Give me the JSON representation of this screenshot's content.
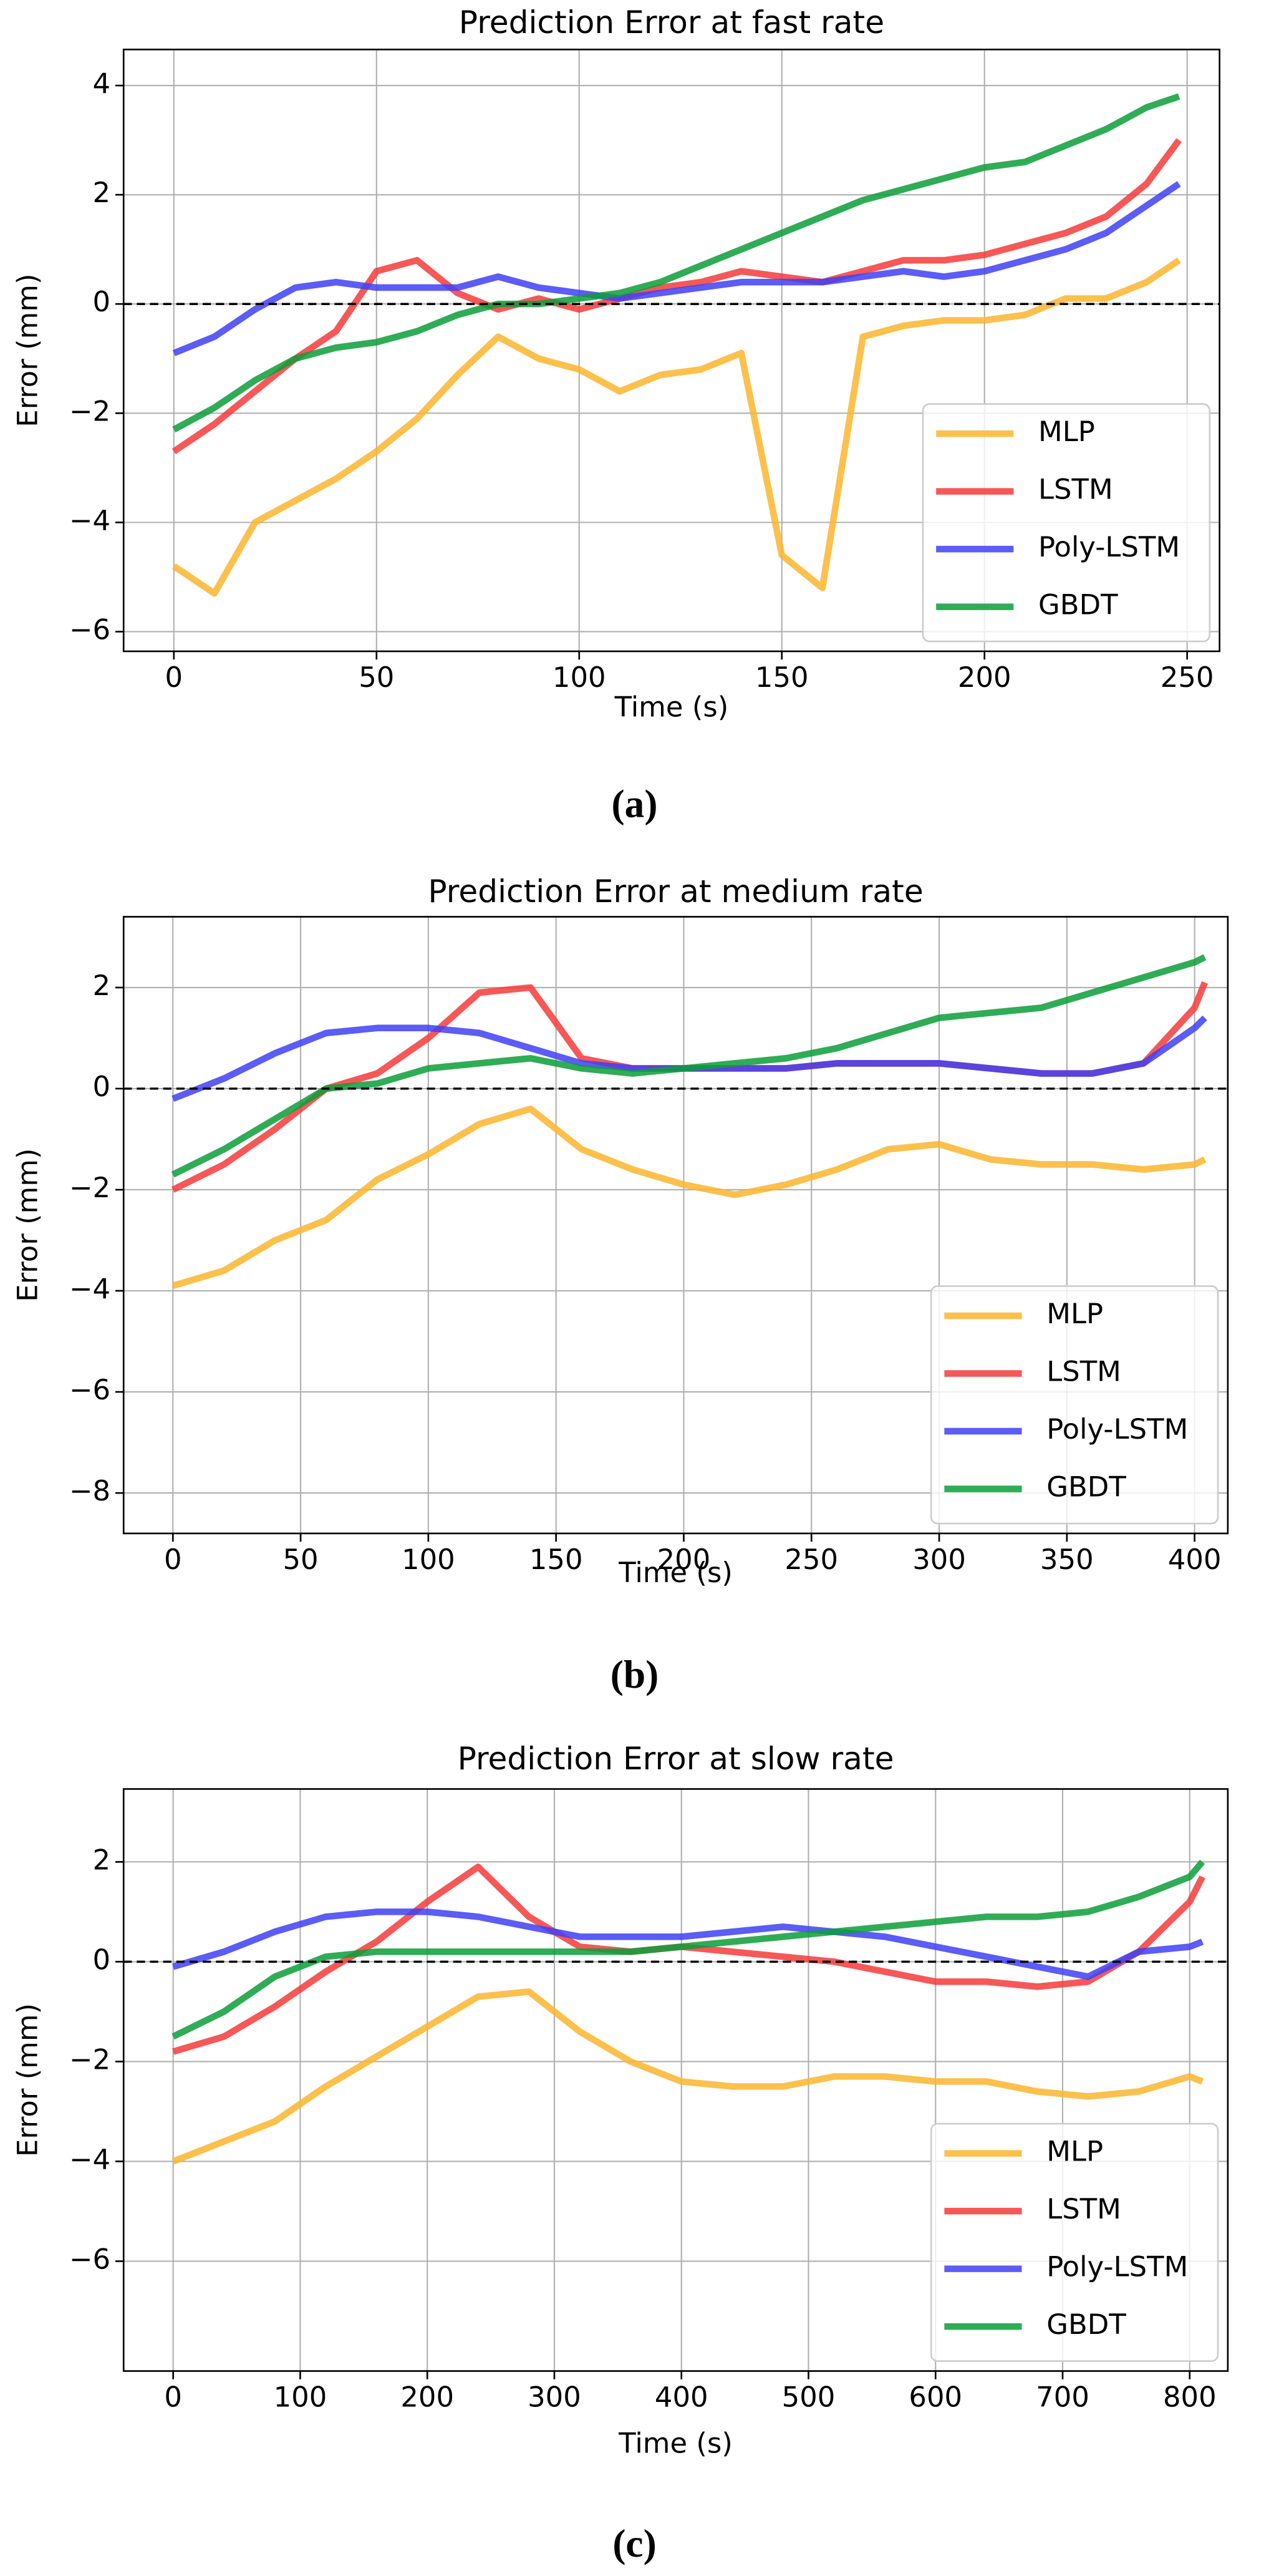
{
  "chart_data": [
    {
      "type": "line",
      "title": "Prediction Error at fast rate",
      "xlabel": "Time (s)",
      "ylabel": "Error (mm)",
      "caption": "(a)",
      "x": [
        0,
        10,
        20,
        30,
        40,
        50,
        60,
        70,
        80,
        90,
        100,
        110,
        120,
        130,
        140,
        150,
        160,
        170,
        180,
        190,
        200,
        210,
        220,
        230,
        240,
        248
      ],
      "series": [
        {
          "name": "MLP",
          "color": "#fbb52e",
          "values": [
            -4.8,
            -5.3,
            -4.0,
            -3.6,
            -3.2,
            -2.7,
            -2.1,
            -1.3,
            -0.6,
            -1.0,
            -1.2,
            -1.6,
            -1.3,
            -1.2,
            -0.9,
            -4.6,
            -5.2,
            -0.6,
            -0.4,
            -0.3,
            -0.3,
            -0.2,
            0.1,
            0.1,
            0.4,
            0.8
          ]
        },
        {
          "name": "LSTM",
          "color": "#f53b3b",
          "values": [
            -2.7,
            -2.2,
            -1.6,
            -1.0,
            -0.5,
            0.6,
            0.8,
            0.2,
            -0.1,
            0.1,
            -0.1,
            0.1,
            0.3,
            0.4,
            0.6,
            0.5,
            0.4,
            0.6,
            0.8,
            0.8,
            0.9,
            1.1,
            1.3,
            1.6,
            2.2,
            3.0
          ]
        },
        {
          "name": "Poly-LSTM",
          "color": "#3f3ff5",
          "values": [
            -0.9,
            -0.6,
            -0.1,
            0.3,
            0.4,
            0.3,
            0.3,
            0.3,
            0.5,
            0.3,
            0.2,
            0.1,
            0.2,
            0.3,
            0.4,
            0.4,
            0.4,
            0.5,
            0.6,
            0.5,
            0.6,
            0.8,
            1.0,
            1.3,
            1.8,
            2.2
          ]
        },
        {
          "name": "GBDT",
          "color": "#0c9e3a",
          "values": [
            -2.3,
            -1.9,
            -1.4,
            -1.0,
            -0.8,
            -0.7,
            -0.5,
            -0.2,
            0.0,
            0.0,
            0.1,
            0.2,
            0.4,
            0.7,
            1.0,
            1.3,
            1.6,
            1.9,
            2.1,
            2.3,
            2.5,
            2.6,
            2.9,
            3.2,
            3.6,
            3.8
          ]
        }
      ],
      "hline": 0,
      "xlim": [
        -12.4,
        258
      ],
      "ylim": [
        -6.36,
        4.66
      ],
      "xticks": [
        0,
        50,
        100,
        150,
        200,
        250
      ],
      "yticks": [
        {
          "value": -6,
          "label": "−6"
        },
        {
          "value": -4,
          "label": "−4"
        },
        {
          "value": -2,
          "label": "−2"
        },
        0,
        2,
        4
      ],
      "grid": true,
      "legend": "lower right"
    },
    {
      "type": "line",
      "title": "Prediction Error at medium rate",
      "xlabel": "Time (s)",
      "ylabel": "Error (mm)",
      "caption": "(b)",
      "x": [
        0,
        20,
        40,
        60,
        80,
        100,
        120,
        140,
        160,
        180,
        200,
        220,
        240,
        260,
        280,
        300,
        320,
        340,
        360,
        380,
        400,
        404
      ],
      "series": [
        {
          "name": "MLP",
          "color": "#fbb52e",
          "values": [
            -3.9,
            -3.6,
            -3.0,
            -2.6,
            -1.8,
            -1.3,
            -0.7,
            -0.4,
            -1.2,
            -1.6,
            -1.9,
            -2.1,
            -1.9,
            -1.6,
            -1.2,
            -1.1,
            -1.4,
            -1.5,
            -1.5,
            -1.6,
            -1.5,
            -1.4
          ]
        },
        {
          "name": "LSTM",
          "color": "#f53b3b",
          "values": [
            -2.0,
            -1.5,
            -0.8,
            0.0,
            0.3,
            1.0,
            1.9,
            2.0,
            0.6,
            0.4,
            0.4,
            0.4,
            0.4,
            0.5,
            0.5,
            0.5,
            0.4,
            0.3,
            0.3,
            0.5,
            1.6,
            2.1
          ]
        },
        {
          "name": "Poly-LSTM",
          "color": "#3f3ff5",
          "values": [
            -0.2,
            0.2,
            0.7,
            1.1,
            1.2,
            1.2,
            1.1,
            0.8,
            0.5,
            0.4,
            0.4,
            0.4,
            0.4,
            0.5,
            0.5,
            0.5,
            0.4,
            0.3,
            0.3,
            0.5,
            1.2,
            1.4
          ]
        },
        {
          "name": "GBDT",
          "color": "#0c9e3a",
          "values": [
            -1.7,
            -1.2,
            -0.6,
            0.0,
            0.1,
            0.4,
            0.5,
            0.6,
            0.4,
            0.3,
            0.4,
            0.5,
            0.6,
            0.8,
            1.1,
            1.4,
            1.5,
            1.6,
            1.9,
            2.2,
            2.5,
            2.6
          ]
        }
      ],
      "hline": 0,
      "xlim": [
        -19.3,
        413
      ],
      "ylim": [
        -8.8,
        3.4
      ],
      "xticks": [
        0,
        50,
        100,
        150,
        200,
        250,
        300,
        350,
        400
      ],
      "yticks": [
        {
          "value": -8,
          "label": "−8"
        },
        {
          "value": -6,
          "label": "−6"
        },
        {
          "value": -4,
          "label": "−4"
        },
        {
          "value": -2,
          "label": "−2"
        },
        0,
        2
      ],
      "grid": true,
      "legend": "lower right"
    },
    {
      "type": "line",
      "title": "Prediction Error at slow rate",
      "xlabel": "Time (s)",
      "ylabel": "Error (mm)",
      "caption": "(c)",
      "x": [
        0,
        40,
        80,
        120,
        160,
        200,
        240,
        280,
        320,
        360,
        400,
        440,
        480,
        520,
        560,
        600,
        640,
        680,
        720,
        760,
        800,
        810
      ],
      "series": [
        {
          "name": "MLP",
          "color": "#fbb52e",
          "values": [
            -4.0,
            -3.6,
            -3.2,
            -2.5,
            -1.9,
            -1.3,
            -0.7,
            -0.6,
            -1.4,
            -2.0,
            -2.4,
            -2.5,
            -2.5,
            -2.3,
            -2.3,
            -2.4,
            -2.4,
            -2.6,
            -2.7,
            -2.6,
            -2.3,
            -2.4
          ]
        },
        {
          "name": "LSTM",
          "color": "#f53b3b",
          "values": [
            -1.8,
            -1.5,
            -0.9,
            -0.2,
            0.4,
            1.2,
            1.9,
            0.9,
            0.3,
            0.2,
            0.3,
            0.2,
            0.1,
            0.0,
            -0.2,
            -0.4,
            -0.4,
            -0.5,
            -0.4,
            0.2,
            1.2,
            1.7
          ]
        },
        {
          "name": "Poly-LSTM",
          "color": "#3f3ff5",
          "values": [
            -0.1,
            0.2,
            0.6,
            0.9,
            1.0,
            1.0,
            0.9,
            0.7,
            0.5,
            0.5,
            0.5,
            0.6,
            0.7,
            0.6,
            0.5,
            0.3,
            0.1,
            -0.1,
            -0.3,
            0.2,
            0.3,
            0.4
          ]
        },
        {
          "name": "GBDT",
          "color": "#0c9e3a",
          "values": [
            -1.5,
            -1.0,
            -0.3,
            0.1,
            0.2,
            0.2,
            0.2,
            0.2,
            0.2,
            0.2,
            0.3,
            0.4,
            0.5,
            0.6,
            0.7,
            0.8,
            0.9,
            0.9,
            1.0,
            1.3,
            1.7,
            2.0
          ]
        }
      ],
      "hline": 0,
      "xlim": [
        -39,
        830
      ],
      "ylim": [
        -8.2,
        3.46
      ],
      "xticks": [
        0,
        100,
        200,
        300,
        400,
        500,
        600,
        700,
        800
      ],
      "yticks": [
        {
          "value": -6,
          "label": "−6"
        },
        {
          "value": -4,
          "label": "−4"
        },
        {
          "value": -2,
          "label": "−2"
        },
        0,
        2
      ],
      "grid": true,
      "legend": "lower right"
    }
  ]
}
